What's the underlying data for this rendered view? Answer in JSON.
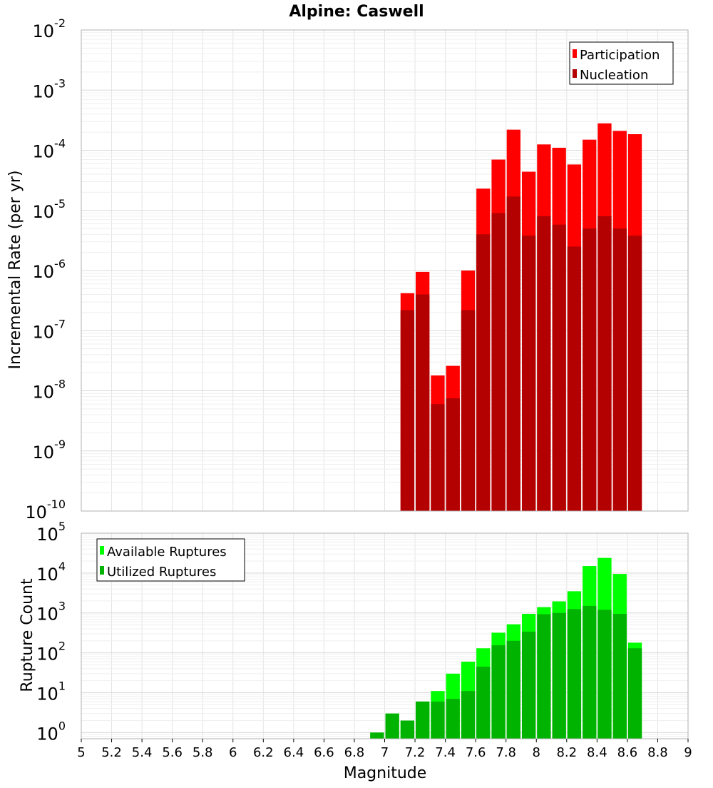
{
  "title": "Alpine: Caswell",
  "xlabel": "Magnitude",
  "x_ticks": [
    "5",
    "5.2",
    "5.4",
    "5.6",
    "5.8",
    "6",
    "6.2",
    "6.4",
    "6.6",
    "6.8",
    "7",
    "7.2",
    "7.4",
    "7.6",
    "7.8",
    "8",
    "8.2",
    "8.4",
    "8.6",
    "8.8",
    "9"
  ],
  "top_ticks": [
    {
      "base": "10",
      "exp": "-10"
    },
    {
      "base": "10",
      "exp": "-9"
    },
    {
      "base": "10",
      "exp": "-8"
    },
    {
      "base": "10",
      "exp": "-7"
    },
    {
      "base": "10",
      "exp": "-6"
    },
    {
      "base": "10",
      "exp": "-5"
    },
    {
      "base": "10",
      "exp": "-4"
    },
    {
      "base": "10",
      "exp": "-3"
    },
    {
      "base": "10",
      "exp": "-2"
    }
  ],
  "bottom_ticks": [
    {
      "base": "10",
      "exp": "0"
    },
    {
      "base": "10",
      "exp": "1"
    },
    {
      "base": "10",
      "exp": "2"
    },
    {
      "base": "10",
      "exp": "3"
    },
    {
      "base": "10",
      "exp": "4"
    },
    {
      "base": "10",
      "exp": "5"
    }
  ],
  "colors": {
    "participation": "#ff0000",
    "nucleation": "#b30000",
    "available": "#00ff00",
    "utilized": "#00b300",
    "grid": "#e4e4e4",
    "frame": "#b0b0b0"
  },
  "chart_data": [
    {
      "type": "bar",
      "title": "Alpine: Caswell",
      "xlabel": "Magnitude",
      "ylabel": "Incremental Rate (per yr)",
      "xlim": [
        5,
        9
      ],
      "ylim": [
        1e-10,
        0.01
      ],
      "yscale": "log",
      "grid": true,
      "legend": "top-right",
      "bar_width": 0.1,
      "x": [
        7.15,
        7.25,
        7.35,
        7.45,
        7.55,
        7.65,
        7.75,
        7.85,
        7.95,
        8.05,
        8.15,
        8.25,
        8.35,
        8.45,
        8.55,
        8.65
      ],
      "series": [
        {
          "name": "Participation",
          "values": [
            4.2e-07,
            9.5e-07,
            1.8e-08,
            2.6e-08,
            1e-06,
            2.3e-05,
            7e-05,
            0.00022,
            4.4e-05,
            0.000125,
            0.00011,
            5.8e-05,
            0.00015,
            0.00028,
            0.00021,
            0.000185
          ]
        },
        {
          "name": "Nucleation",
          "values": [
            2.2e-07,
            4e-07,
            6e-09,
            7.5e-09,
            2.2e-07,
            4e-06,
            9e-06,
            1.7e-05,
            3.8e-06,
            8e-06,
            5.8e-06,
            2.5e-06,
            5e-06,
            8e-06,
            5e-06,
            3.8e-06
          ]
        }
      ]
    },
    {
      "type": "bar",
      "xlabel": "Magnitude",
      "ylabel": "Rupture Count",
      "xlim": [
        5,
        9
      ],
      "ylim": [
        0.7,
        100000
      ],
      "yscale": "log",
      "grid": true,
      "legend": "top-left",
      "bar_width": 0.1,
      "x": [
        6.95,
        7.05,
        7.15,
        7.25,
        7.35,
        7.45,
        7.55,
        7.65,
        7.75,
        7.85,
        7.95,
        8.05,
        8.15,
        8.25,
        8.35,
        8.45,
        8.55,
        8.65
      ],
      "series": [
        {
          "name": "Available Ruptures",
          "values": [
            1,
            3,
            2,
            6,
            11,
            30,
            60,
            130,
            320,
            520,
            950,
            1400,
            1950,
            3500,
            15000,
            24000,
            9500,
            180
          ]
        },
        {
          "name": "Utilized Ruptures",
          "values": [
            1,
            3,
            2,
            6,
            6,
            7,
            11,
            45,
            155,
            200,
            340,
            930,
            1000,
            1250,
            1500,
            1200,
            950,
            130
          ]
        }
      ]
    }
  ]
}
